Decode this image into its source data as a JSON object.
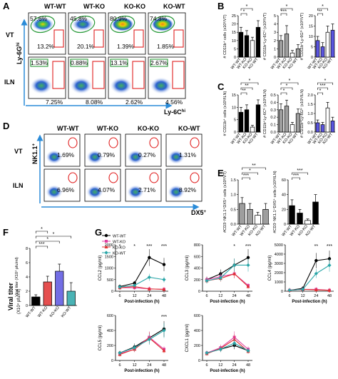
{
  "panels": {
    "A": {
      "letter": "A",
      "columns": [
        "WT-WT",
        "WT-KO",
        "KO-KO",
        "KO-WT"
      ],
      "rows": [
        "VT",
        "ILN"
      ],
      "y_axis": "Ly-6G",
      "y_axis_sup": "hi",
      "x_axis": "Ly-6C",
      "x_axis_sup": "hi",
      "vt_top": [
        "57.6%",
        "45.8%",
        "80.9%",
        "74.8%"
      ],
      "vt_bottom": [
        "13.2%",
        "20.1%",
        "1.39%",
        "1.85%"
      ],
      "iln_top": [
        "1.53%",
        "0.88%",
        "13.1%",
        "2.67%"
      ],
      "iln_bottom": [
        "7.25%",
        "8.08%",
        "2.62%",
        "4.56%"
      ]
    },
    "B": {
      "letter": "B",
      "ylabels": [
        "# CD11b⁺ cells (x10³/VT)",
        "# CD11b⁺Ly-6Cʰⁱ (x10³/VT)",
        "# CD11b⁺Ly-6Gʰⁱ (x10³/VT)"
      ]
    },
    "C": {
      "letter": "C",
      "ylabels": [
        "# CD11b⁺ cells (x10³/ILN)",
        "# CD11b⁺Ly-6Cʰⁱ (x10³/ILN)",
        "# CD11b⁺Ly-6Gʰⁱ (x10³/ILN)"
      ]
    },
    "D": {
      "letter": "D",
      "columns": [
        "WT-WT",
        "WT-KO",
        "KO-KO",
        "KO-WT"
      ],
      "rows": [
        "VT",
        "ILN"
      ],
      "y_axis": "NK1.1",
      "y_axis_sup": "+",
      "x_axis": "DX5",
      "x_axis_sup": "+",
      "vt_values": [
        "1.69%",
        "0.79%",
        "0.27%",
        "1.31%"
      ],
      "iln_values": [
        "6.96%",
        "4.07%",
        "2.71%",
        "8.92%"
      ]
    },
    "E": {
      "letter": "E",
      "ylabels": [
        "#CD3⁻NK1.1⁺DX5⁺ cells (x10³/VT)",
        "#CD3⁻NK1.1⁺DX5⁺ cells (x10³/ILN)"
      ]
    },
    "F": {
      "letter": "F",
      "ylabel": "Viral titer",
      "ylabel2": "(X10⁴ pfu/ml)"
    },
    "G": {
      "letter": "G",
      "xlabel": "Post-infection (h)",
      "legend": [
        "WT-WT",
        "WT-KO",
        "KO-KO",
        "KO-WT"
      ],
      "subplots": [
        "CCL2 (pg/ml)",
        "CCL3 (pg/ml)",
        "CCL4 (pg/ml)",
        "CCL5 (pg/ml)",
        "CXCL1 (pg/ml)"
      ]
    }
  },
  "groups": [
    "WT-WT",
    "WT-KO",
    "KO-KO",
    "KO-WT"
  ],
  "colors": {
    "black": "#000000",
    "gray": "#9e9e9e",
    "blue": "#5a55e0",
    "red": "#e03030",
    "pink": "#e040a0",
    "teal": "#2aa6a8",
    "arrow": "#2a8bd8",
    "gate_red": "#e02020",
    "gate_green": "#2a9a3a"
  },
  "chart_data": [
    {
      "type": "bar",
      "title": "",
      "panel": "B1",
      "ylabel": "# CD11b⁺ cells (x10³/VT)",
      "categories": [
        "WT-WT",
        "WT-KO",
        "KO-KO",
        "KO-WT"
      ],
      "values": [
        15,
        13,
        10,
        18
      ],
      "errors": [
        3,
        3,
        2,
        4
      ],
      "ylim": [
        0,
        25
      ],
      "yticks": [
        "0",
        "5",
        "10",
        "15",
        "20",
        "25"
      ],
      "annotations": [
        "*",
        "*"
      ],
      "colorkey": "black"
    },
    {
      "type": "bar",
      "title": "",
      "panel": "B2",
      "ylabel": "# CD11b⁺Ly-6Cʰⁱ (x10³/VT)",
      "categories": [
        "WT-WT",
        "WT-KO",
        "KO-KO",
        "KO-WT"
      ],
      "values": [
        2.0,
        2.8,
        0.5,
        1.0
      ],
      "errors": [
        0.6,
        1.0,
        0.3,
        0.5
      ],
      "ylim": [
        0,
        5
      ],
      "yticks": [
        "0",
        "1",
        "2",
        "3",
        "4",
        "5"
      ],
      "annotations": [
        "***",
        "*"
      ],
      "colorkey": "gray"
    },
    {
      "type": "bar",
      "title": "",
      "panel": "B3",
      "ylabel": "# CD11b⁺Ly-6Gʰⁱ (x10³/VT)",
      "categories": [
        "WT-WT",
        "WT-KO",
        "KO-KO",
        "KO-WT"
      ],
      "values": [
        8,
        5,
        12,
        13
      ],
      "errors": [
        2,
        2,
        3,
        3
      ],
      "ylim": [
        0,
        20
      ],
      "yticks": [
        "0",
        "5",
        "10",
        "15",
        "20"
      ],
      "annotations": [
        "**",
        "*"
      ],
      "colorkey": "blue"
    },
    {
      "type": "bar",
      "title": "",
      "panel": "C1",
      "ylabel": "# CD11b⁺ cells (x10³/ILN)",
      "categories": [
        "WT-WT",
        "WT-KO",
        "KO-KO",
        "KO-WT"
      ],
      "values": [
        8,
        9,
        2,
        11
      ],
      "errors": [
        2,
        2,
        0.7,
        2
      ],
      "ylim": [
        0,
        15
      ],
      "yticks": [
        "0",
        "5",
        "10",
        "15"
      ],
      "annotations": [
        "**",
        "**",
        "*"
      ],
      "colorkey": "black"
    },
    {
      "type": "bar",
      "title": "",
      "panel": "C2",
      "ylabel": "# CD11b⁺Ly-6Cʰⁱ (x10³/ILN)",
      "categories": [
        "WT-WT",
        "WT-KO",
        "KO-KO",
        "KO-WT"
      ],
      "values": [
        0.3,
        0.35,
        0.1,
        0.25
      ],
      "errors": [
        0.08,
        0.08,
        0.03,
        0.06
      ],
      "ylim": [
        0,
        0.5
      ],
      "yticks": [
        "0.0",
        "0.1",
        "0.2",
        "0.3",
        "0.4",
        "0.5"
      ],
      "annotations": [
        "*",
        "*",
        "*"
      ],
      "colorkey": "gray"
    },
    {
      "type": "bar",
      "title": "",
      "panel": "C3",
      "ylabel": "# CD11b⁺Ly-6Gʰⁱ (x10³/ILN)",
      "categories": [
        "WT-WT",
        "WT-KO",
        "KO-KO",
        "KO-WT"
      ],
      "values": [
        0.5,
        0.4,
        1.3,
        0.6
      ],
      "errors": [
        0.15,
        0.12,
        0.3,
        0.2
      ],
      "ylim": [
        0,
        2.0
      ],
      "yticks": [
        "0.0",
        "0.5",
        "1.0",
        "1.5",
        "2.0"
      ],
      "annotations": [
        "*",
        "***",
        "*"
      ],
      "colorkey": "blue"
    },
    {
      "type": "bar",
      "title": "",
      "panel": "E1",
      "ylabel": "#CD3⁻NK1.1⁺DX5⁺ cells (x10³/VT)",
      "categories": [
        "WT-WT",
        "WT-KO",
        "KO-KO",
        "KO-WT"
      ],
      "values": [
        0.7,
        0.5,
        0.3,
        0.5
      ],
      "errors": [
        0.2,
        0.2,
        0.1,
        0.2
      ],
      "ylim": [
        0,
        1.5
      ],
      "yticks": [
        "0.0",
        "0.5",
        "1.0",
        "1.5"
      ],
      "annotations": [
        "***",
        "*",
        "**"
      ],
      "colorkey": "gray"
    },
    {
      "type": "bar",
      "title": "",
      "panel": "E2",
      "ylabel": "#CD3⁻NK1.1⁺DX5⁺ cells (x10³/ILN)",
      "categories": [
        "WT-WT",
        "WT-KO",
        "KO-KO",
        "KO-WT"
      ],
      "values": [
        25,
        15,
        5,
        30
      ],
      "errors": [
        8,
        5,
        2,
        10
      ],
      "ylim": [
        0,
        60
      ],
      "yticks": [
        "0",
        "20",
        "40",
        "60"
      ],
      "annotations": [
        "***",
        "***"
      ],
      "colorkey": "black"
    },
    {
      "type": "bar",
      "title": "",
      "panel": "F",
      "ylabel": "Viral titer (X10⁴ pfu/ml)",
      "categories": [
        "WT-WT",
        "WT-KO",
        "KO-KO",
        "KO-WT"
      ],
      "values": [
        1.2,
        3.3,
        4.8,
        2.0
      ],
      "errors": [
        0.3,
        0.8,
        1.0,
        1.2
      ],
      "ylim": [
        0,
        8
      ],
      "yticks": [
        "0",
        "2",
        "4",
        "6",
        "8"
      ],
      "annotations": [
        "***",
        "*",
        "*",
        "*"
      ],
      "barcolors": [
        "#000000",
        "#e03030",
        "#5a55e0",
        "#2aa6a8"
      ]
    },
    {
      "type": "line",
      "title": "",
      "panel": "G-CCL2",
      "ylabel": "CCL2 (pg/ml)",
      "xlabel": "Post-infection (h)",
      "x": [
        6,
        12,
        24,
        48
      ],
      "ylim": [
        0,
        2000
      ],
      "yticks": [
        "0",
        "500",
        "1000",
        "1500",
        "2000"
      ],
      "series": [
        {
          "name": "WT-WT",
          "values": [
            200,
            350,
            1450,
            1150
          ]
        },
        {
          "name": "WT-KO",
          "values": [
            150,
            150,
            100,
            80
          ]
        },
        {
          "name": "KO-KO",
          "values": [
            150,
            200,
            100,
            80
          ]
        },
        {
          "name": "KO-WT",
          "values": [
            180,
            250,
            600,
            500
          ]
        }
      ],
      "annotations": [
        "*",
        "*",
        "***",
        "***"
      ]
    },
    {
      "type": "line",
      "title": "",
      "panel": "G-CCL3",
      "ylabel": "CCL3 (pg/ml)",
      "xlabel": "Post-infection (h)",
      "x": [
        6,
        12,
        24,
        48
      ],
      "ylim": [
        0,
        800
      ],
      "yticks": [
        "0",
        "200",
        "400",
        "600",
        "800"
      ],
      "series": [
        {
          "name": "WT-WT",
          "values": [
            200,
            300,
            450,
            580
          ]
        },
        {
          "name": "WT-KO",
          "values": [
            200,
            250,
            300,
            100
          ]
        },
        {
          "name": "KO-KO",
          "values": [
            180,
            220,
            300,
            80
          ]
        },
        {
          "name": "KO-WT",
          "values": [
            180,
            230,
            450,
            450
          ]
        }
      ],
      "annotations": [
        "*",
        "***"
      ]
    },
    {
      "type": "line",
      "title": "",
      "panel": "G-CCL4",
      "ylabel": "CCL4 (pg/ml)",
      "xlabel": "Post-infection (h)",
      "x": [
        6,
        12,
        24,
        48
      ],
      "ylim": [
        0,
        5000
      ],
      "yticks": [
        "0",
        "1000",
        "2000",
        "3000",
        "4000",
        "5000"
      ],
      "series": [
        {
          "name": "WT-WT",
          "values": [
            100,
            300,
            3300,
            3500
          ]
        },
        {
          "name": "WT-KO",
          "values": [
            100,
            200,
            200,
            100
          ]
        },
        {
          "name": "KO-KO",
          "values": [
            100,
            200,
            150,
            100
          ]
        },
        {
          "name": "KO-WT",
          "values": [
            100,
            200,
            1900,
            2800
          ]
        }
      ],
      "annotations": [
        "**",
        "***"
      ]
    },
    {
      "type": "line",
      "title": "",
      "panel": "G-CCL5",
      "ylabel": "CCL5 (pg/ml)",
      "xlabel": "Post-infection (h)",
      "x": [
        6,
        12,
        24,
        48
      ],
      "ylim": [
        0,
        600
      ],
      "yticks": [
        "0",
        "200",
        "400",
        "600"
      ],
      "series": [
        {
          "name": "WT-WT",
          "values": [
            100,
            180,
            300,
            420
          ]
        },
        {
          "name": "WT-KO",
          "values": [
            90,
            150,
            310,
            150
          ]
        },
        {
          "name": "KO-KO",
          "values": [
            80,
            150,
            300,
            130
          ]
        },
        {
          "name": "KO-WT",
          "values": [
            100,
            170,
            280,
            400
          ]
        }
      ],
      "annotations": [
        "***"
      ]
    },
    {
      "type": "line",
      "title": "",
      "panel": "G-CXCL1",
      "ylabel": "CXCL1 (pg/ml)",
      "xlabel": "Post-infection (h)",
      "x": [
        6,
        12,
        24,
        48
      ],
      "ylim": [
        0,
        600
      ],
      "yticks": [
        "0",
        "200",
        "400",
        "600"
      ],
      "series": [
        {
          "name": "WT-WT",
          "values": [
            100,
            150,
            200,
            130
          ]
        },
        {
          "name": "WT-KO",
          "values": [
            100,
            170,
            310,
            150
          ]
        },
        {
          "name": "KO-KO",
          "values": [
            90,
            160,
            280,
            120
          ]
        },
        {
          "name": "KO-WT",
          "values": [
            100,
            150,
            230,
            130
          ]
        }
      ],
      "annotations": []
    }
  ]
}
